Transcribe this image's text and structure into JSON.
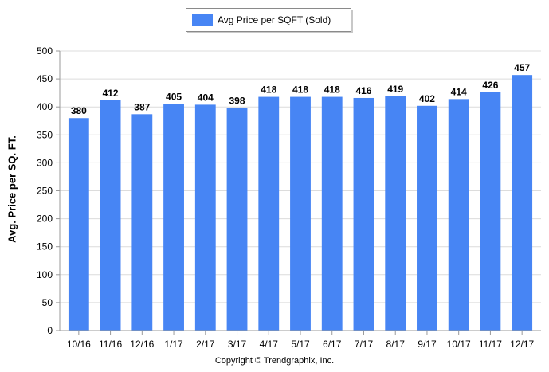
{
  "chart_data": {
    "type": "bar",
    "categories": [
      "10/16",
      "11/16",
      "12/16",
      "1/17",
      "2/17",
      "3/17",
      "4/17",
      "5/17",
      "6/17",
      "7/17",
      "8/17",
      "9/17",
      "10/17",
      "11/17",
      "12/17"
    ],
    "series": [
      {
        "name": "Avg Price per SQFT (Sold)",
        "values": [
          380,
          412,
          387,
          405,
          404,
          398,
          418,
          418,
          418,
          416,
          419,
          402,
          414,
          426,
          457
        ]
      }
    ],
    "data_labels": [
      "380",
      "412",
      "387",
      "405",
      "404",
      "398",
      "418",
      "418",
      "418",
      "416",
      "419",
      "402",
      "414",
      "426",
      "457"
    ],
    "ylabel": "Avg. Price per SQ. FT.",
    "ylim": [
      0,
      500
    ],
    "yticks": [
      "0",
      "50",
      "100",
      "150",
      "200",
      "250",
      "300",
      "350",
      "400",
      "450",
      "500"
    ],
    "grid": true,
    "legend_position": "top-center",
    "bar_color": "#4785f4"
  },
  "footer": {
    "copyright": "Copyright © Trendgraphix, Inc."
  }
}
